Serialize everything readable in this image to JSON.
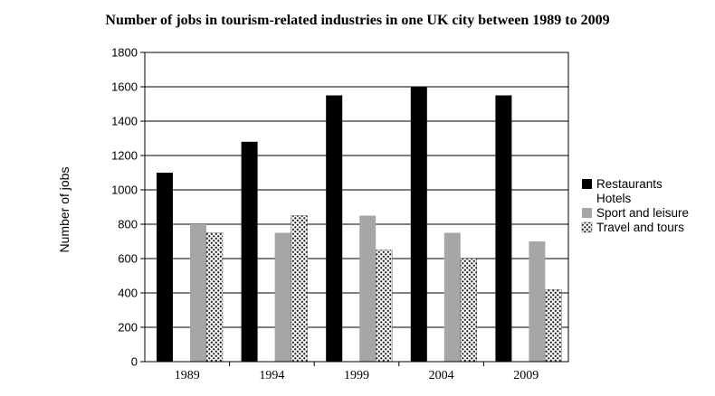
{
  "chart_data": {
    "type": "bar",
    "title": "Number of jobs in tourism-related industries in one UK city between 1989 to 2009",
    "xlabel": "",
    "ylabel": "Number of jobs",
    "ylim": [
      0,
      1800
    ],
    "yticks": [
      0,
      200,
      400,
      600,
      800,
      1000,
      1200,
      1400,
      1600,
      1800
    ],
    "categories": [
      "1989",
      "1994",
      "1999",
      "2004",
      "2009"
    ],
    "grid": true,
    "legend_position": "right",
    "series": [
      {
        "name": "Restaurants",
        "values": [
          1100,
          1280,
          1550,
          1600,
          1550
        ],
        "color": "#000000",
        "pattern": "solid"
      },
      {
        "name": "Hotels",
        "values": [
          0,
          0,
          0,
          0,
          0
        ],
        "color": "#ffffff",
        "pattern": "none"
      },
      {
        "name": "Sport and leisure",
        "values": [
          800,
          750,
          850,
          750,
          700
        ],
        "color": "#a6a6a6",
        "pattern": "solid"
      },
      {
        "name": "Travel and tours",
        "values": [
          750,
          850,
          650,
          600,
          420
        ],
        "color": "#ffffff",
        "pattern": "dots"
      }
    ]
  }
}
